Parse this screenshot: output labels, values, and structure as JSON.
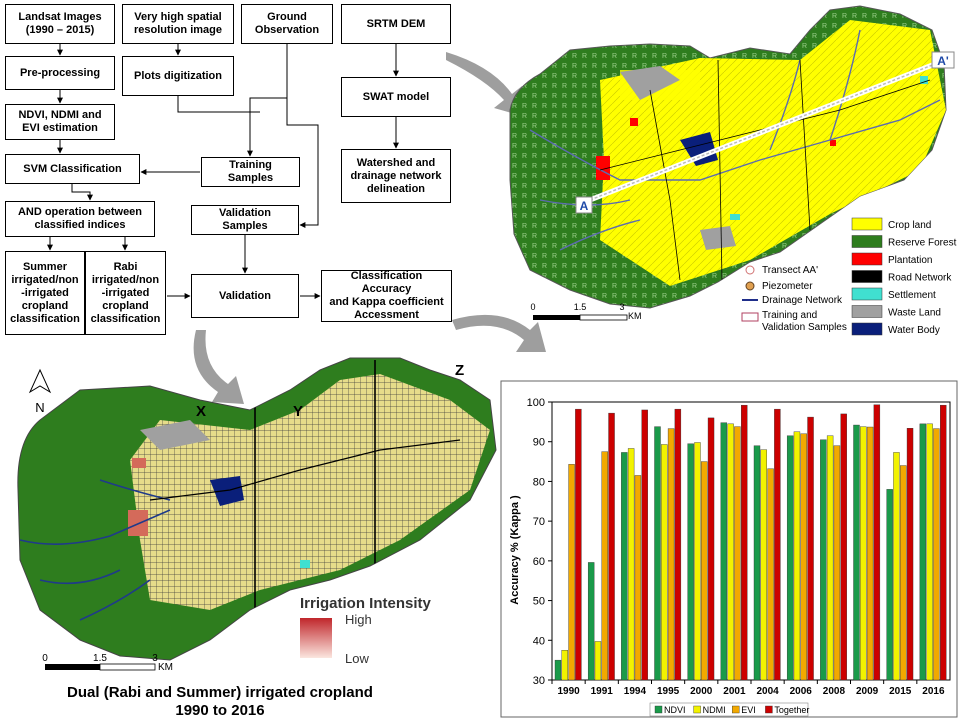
{
  "flowchart": {
    "landsat": "Landsat Images\n(1990 – 2015)",
    "vhr": "Very high spatial\nresolution image",
    "ground": "Ground\nObservation",
    "srtm": "SRTM DEM",
    "preprocessing": "Pre-processing",
    "plots": "Plots digitization",
    "indices": "NDVI, NDMI and\nEVI estimation",
    "swat": "SWAT model",
    "svm": "SVM Classification",
    "training": "Training Samples",
    "watershed": "Watershed and\ndrainage network\ndelineation",
    "and_op": "AND operation between\nclassified indices",
    "validation_samples": "Validation Samples",
    "summer": "Summer\nirrigated/non\n-irrigated\ncropland\nclassification",
    "rabi": "Rabi\nirrigated/non\n-irrigated\ncropland\nclassification",
    "validation": "Validation",
    "accuracy": "Classification Accuracy\nand Kappa coefficient\nAccessment"
  },
  "landuse_map": {
    "transect_start": "A",
    "transect_end": "A'",
    "legend_right": [
      {
        "label": "Crop land",
        "color": "#ffff00"
      },
      {
        "label": "Reserve Forest",
        "color": "#2e7d1e"
      },
      {
        "label": "Plantation",
        "color": "#ff0000"
      },
      {
        "label": "Road Network",
        "color": "#000000"
      },
      {
        "label": "Settlement",
        "color": "#40e0d0"
      },
      {
        "label": "Waste Land",
        "color": "#a0a0a0"
      },
      {
        "label": "Water Body",
        "color": "#0a1f7a"
      }
    ],
    "legend_left": {
      "transect": "Transect AA'",
      "piezometer": "Piezometer",
      "drainage": "Drainage Network",
      "samples": "Training and\nValidation Samples"
    },
    "scale": {
      "t0": "0",
      "t1": "1.5",
      "t2": "3",
      "unit": "KM"
    }
  },
  "irrigation_map": {
    "north": "N",
    "zone_x": "X",
    "zone_y": "Y",
    "zone_z": "Z",
    "legend_title": "Irrigation Intensity",
    "legend_high": "High",
    "legend_low": "Low",
    "scale": {
      "t0": "0",
      "t1": "1.5",
      "t2": "3",
      "unit": "KM"
    },
    "caption": "Dual (Rabi and Summer) irrigated cropland\n1990 to 2016"
  },
  "chart_data": {
    "type": "bar",
    "ylabel": "Accuracy % (Kappa )",
    "ylim": [
      30,
      100
    ],
    "yticks": [
      30,
      40,
      50,
      60,
      70,
      80,
      90,
      100
    ],
    "legend_position": "bottom",
    "categories": [
      "1990",
      "1991",
      "1994",
      "1995",
      "2000",
      "2001",
      "2004",
      "2006",
      "2008",
      "2009",
      "2015",
      "2016"
    ],
    "series": [
      {
        "name": "NDVI",
        "color": "#1a9a4a",
        "values": [
          35,
          59.6,
          87.3,
          93.8,
          89.5,
          94.8,
          89,
          91.5,
          90.5,
          94.2,
          78,
          94.5
        ]
      },
      {
        "name": "NDMI",
        "color": "#f2f200",
        "values": [
          37.5,
          39.7,
          88.3,
          89.3,
          89.8,
          94.5,
          88,
          92.5,
          91.5,
          93.8,
          87.3,
          94.5
        ]
      },
      {
        "name": "EVI",
        "color": "#f2a900",
        "values": [
          84.3,
          87.5,
          81.5,
          93.3,
          85,
          93.8,
          83.2,
          92,
          89,
          93.7,
          84,
          93.3
        ]
      },
      {
        "name": "Together",
        "color": "#cc0000",
        "values": [
          98.2,
          97.2,
          98,
          98.2,
          96,
          99.2,
          98.2,
          96.2,
          97,
          99.3,
          93.4,
          99.2
        ]
      }
    ]
  }
}
